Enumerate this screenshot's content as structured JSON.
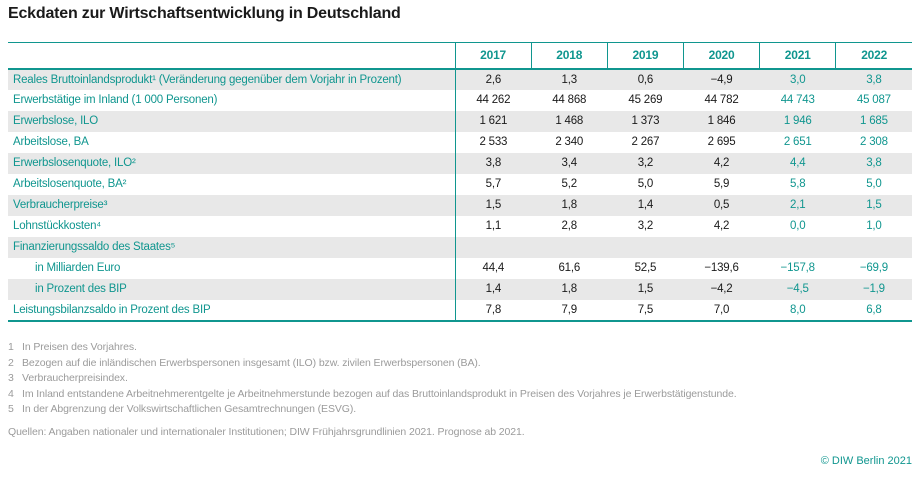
{
  "title": "Eckdaten zur Wirtschaftsentwicklung in Deutschland",
  "colors": {
    "accent_teal": "#10968f",
    "row_stripe_gray": "#e8e8e8",
    "body_text": "#1a1a1a",
    "footnote_gray": "#9b9b9b"
  },
  "chart_data": {
    "type": "table",
    "title": "Eckdaten zur Wirtschaftsentwicklung in Deutschland",
    "columns": [
      "2017",
      "2018",
      "2019",
      "2020",
      "2021",
      "2022"
    ],
    "forecast_from_index": 4,
    "rows": [
      {
        "label": "Reales Bruttoinlandsprodukt¹ (Veränderung gegenüber dem Vorjahr in Prozent)",
        "indent": false,
        "values": [
          "2,6",
          "1,3",
          "0,6",
          "−4,9",
          "3,0",
          "3,8"
        ]
      },
      {
        "label": "Erwerbstätige im Inland (1 000 Personen)",
        "indent": false,
        "values": [
          "44 262",
          "44 868",
          "45 269",
          "44 782",
          "44 743",
          "45 087"
        ]
      },
      {
        "label": "Erwerbslose, ILO",
        "indent": false,
        "values": [
          "1 621",
          "1 468",
          "1 373",
          "1 846",
          "1 946",
          "1 685"
        ]
      },
      {
        "label": "Arbeitslose, BA",
        "indent": false,
        "values": [
          "2 533",
          "2 340",
          "2 267",
          "2 695",
          "2 651",
          "2 308"
        ]
      },
      {
        "label": "Erwerbslosenquote, ILO²",
        "indent": false,
        "values": [
          "3,8",
          "3,4",
          "3,2",
          "4,2",
          "4,4",
          "3,8"
        ]
      },
      {
        "label": "Arbeitslosenquote, BA²",
        "indent": false,
        "values": [
          "5,7",
          "5,2",
          "5,0",
          "5,9",
          "5,8",
          "5,0"
        ]
      },
      {
        "label": "Verbraucherpreise³",
        "indent": false,
        "values": [
          "1,5",
          "1,8",
          "1,4",
          "0,5",
          "2,1",
          "1,5"
        ]
      },
      {
        "label": "Lohnstückkosten⁴",
        "indent": false,
        "values": [
          "1,1",
          "2,8",
          "3,2",
          "4,2",
          "0,0",
          "1,0"
        ]
      },
      {
        "label": "Finanzierungssaldo des Staates⁵",
        "indent": false,
        "values": [
          "",
          "",
          "",
          "",
          "",
          ""
        ]
      },
      {
        "label": "in Milliarden Euro",
        "indent": true,
        "values": [
          "44,4",
          "61,6",
          "52,5",
          "−139,6",
          "−157,8",
          "−69,9"
        ]
      },
      {
        "label": "in Prozent des BIP",
        "indent": true,
        "values": [
          "1,4",
          "1,8",
          "1,5",
          "−4,2",
          "−4,5",
          "−1,9"
        ]
      },
      {
        "label": "Leistungsbilanzsaldo in Prozent des BIP",
        "indent": false,
        "values": [
          "7,8",
          "7,9",
          "7,5",
          "7,0",
          "8,0",
          "6,8"
        ]
      }
    ]
  },
  "footnotes": [
    {
      "num": "1",
      "text": "In Preisen des Vorjahres."
    },
    {
      "num": "2",
      "text": "Bezogen auf die inländischen Erwerbspersonen insgesamt (ILO) bzw. zivilen Erwerbspersonen (BA)."
    },
    {
      "num": "3",
      "text": "Verbraucherpreisindex."
    },
    {
      "num": "4",
      "text": "Im Inland entstandene Arbeitnehmerentgelte je Arbeitnehmerstunde bezogen auf das Bruttoinlandsprodukt in Preisen des Vorjahres je Erwerbstätigenstunde."
    },
    {
      "num": "5",
      "text": "In der Abgrenzung der Volkswirtschaftlichen Gesamtrechnungen (ESVG)."
    }
  ],
  "sources": "Quellen: Angaben nationaler und internationaler Institutionen; DIW Frühjahrsgrundlinien 2021. Prognose ab 2021.",
  "copyright": "© DIW Berlin 2021"
}
